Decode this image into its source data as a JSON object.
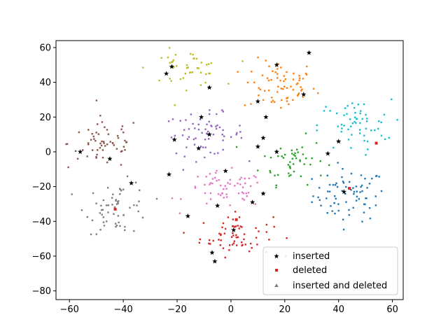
{
  "chart_data": {
    "type": "scatter",
    "title": "",
    "xlabel": "",
    "ylabel": "",
    "xlim": [
      -65,
      64
    ],
    "ylim": [
      -85,
      64
    ],
    "xticks": [
      -60,
      -40,
      -20,
      0,
      20,
      40,
      60
    ],
    "yticks": [
      -80,
      -60,
      -40,
      -20,
      0,
      20,
      40,
      60
    ],
    "xtick_labels": [
      "−60",
      "−40",
      "−20",
      "0",
      "20",
      "40",
      "60"
    ],
    "ytick_labels": [
      "−80",
      "−60",
      "−40",
      "−20",
      "0",
      "20",
      "40",
      "60"
    ],
    "grid": false,
    "legend_position": "lower-right",
    "clusters": [
      {
        "color": "#1f77b4",
        "center": [
          44,
          -25
        ],
        "spread": [
          9,
          10
        ],
        "count": 75
      },
      {
        "color": "#ff7f0e",
        "center": [
          18,
          38
        ],
        "spread": [
          9,
          10
        ],
        "count": 70
      },
      {
        "color": "#2ca02c",
        "center": [
          23,
          -5
        ],
        "spread": [
          8,
          9
        ],
        "count": 50
      },
      {
        "color": "#d62728",
        "center": [
          2,
          -48
        ],
        "spread": [
          9,
          8
        ],
        "count": 65
      },
      {
        "color": "#9467bd",
        "center": [
          -10,
          10
        ],
        "spread": [
          10,
          8
        ],
        "count": 65
      },
      {
        "color": "#8c564b",
        "center": [
          -47,
          5
        ],
        "spread": [
          9,
          10
        ],
        "count": 60
      },
      {
        "color": "#e377c2",
        "center": [
          -2,
          -22
        ],
        "spread": [
          10,
          7
        ],
        "count": 60
      },
      {
        "color": "#7f7f7f",
        "center": [
          -42,
          -32
        ],
        "spread": [
          8,
          10
        ],
        "count": 60
      },
      {
        "color": "#bcbd22",
        "center": [
          -17,
          48
        ],
        "spread": [
          9,
          7
        ],
        "count": 45
      },
      {
        "color": "#17becf",
        "center": [
          46,
          15
        ],
        "spread": [
          9,
          10
        ],
        "count": 60
      }
    ],
    "series": [
      {
        "name": "inserted",
        "color": "#000000",
        "marker": "star",
        "points": [
          [
            -56,
            0
          ],
          [
            -45,
            -4
          ],
          [
            -37,
            -18
          ],
          [
            -24,
            45
          ],
          [
            -22,
            49
          ],
          [
            -21,
            7
          ],
          [
            -23,
            -13
          ],
          [
            -12,
            2
          ],
          [
            -8,
            37
          ],
          [
            -8,
            10
          ],
          [
            -11,
            20
          ],
          [
            -5,
            -31
          ],
          [
            -7,
            -58
          ],
          [
            -6,
            -63
          ],
          [
            -2,
            -11
          ],
          [
            1,
            -45
          ],
          [
            8,
            -29
          ],
          [
            10,
            3
          ],
          [
            12,
            -24
          ],
          [
            12,
            8
          ],
          [
            13,
            20
          ],
          [
            10,
            29
          ],
          [
            17,
            0
          ],
          [
            17,
            50
          ],
          [
            27,
            33
          ],
          [
            29,
            57
          ],
          [
            36,
            -1
          ],
          [
            40,
            6
          ],
          [
            42,
            -23
          ],
          [
            -16,
            -37
          ]
        ]
      },
      {
        "name": "deleted",
        "color": "#d62728",
        "marker": "square",
        "points": [
          [
            -43,
            -33
          ],
          [
            2,
            -39
          ],
          [
            44,
            -21
          ],
          [
            54,
            5
          ]
        ]
      },
      {
        "name": "inserted and deleted",
        "color": "#7f7f7f",
        "marker": "triangle",
        "points": []
      }
    ]
  }
}
